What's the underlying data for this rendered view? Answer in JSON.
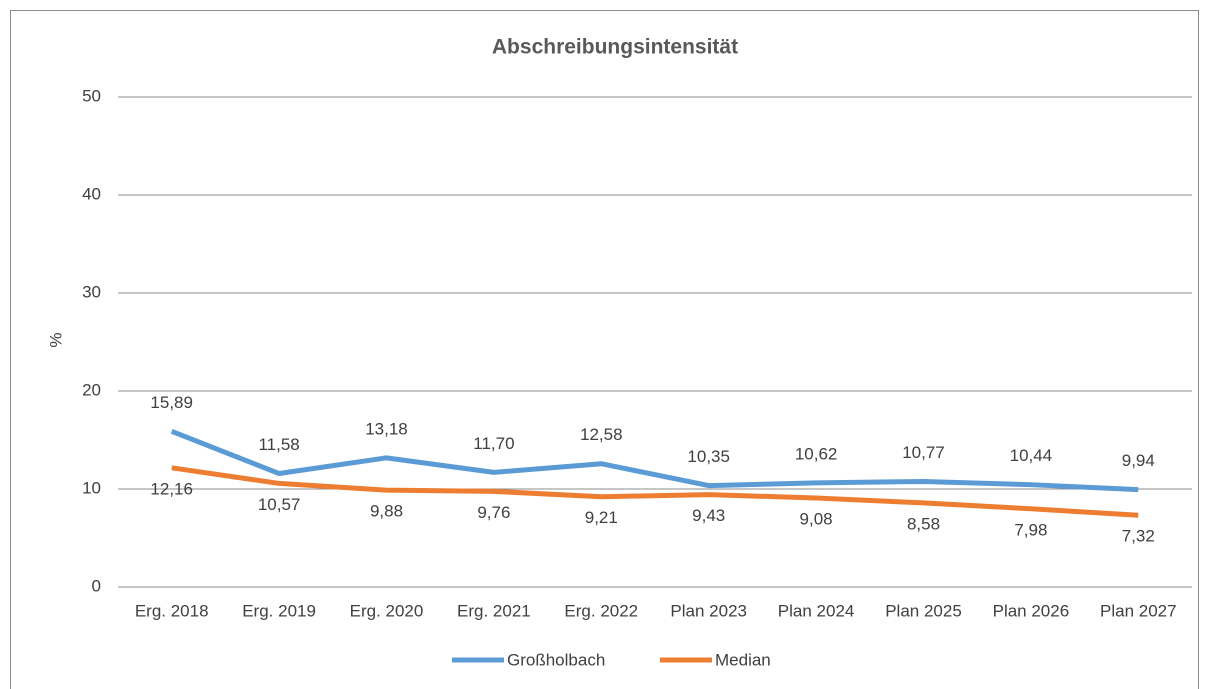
{
  "chart_data": {
    "type": "line",
    "title": "Abschreibungsintensität",
    "y_label": "%",
    "categories": [
      "Erg. 2018",
      "Erg. 2019",
      "Erg. 2020",
      "Erg. 2021",
      "Erg. 2022",
      "Plan 2023",
      "Plan 2024",
      "Plan 2025",
      "Plan 2026",
      "Plan 2027"
    ],
    "series": [
      {
        "name": "Großholbach",
        "color": "#5b9bd5",
        "values": [
          15.89,
          11.58,
          13.18,
          11.7,
          12.58,
          10.35,
          10.62,
          10.77,
          10.44,
          9.94
        ],
        "value_labels": [
          "15,89",
          "11,58",
          "13,18",
          "11,70",
          "12,58",
          "10,35",
          "10,62",
          "10,77",
          "10,44",
          "9,94"
        ]
      },
      {
        "name": "Median",
        "color": "#ed7d31",
        "values": [
          12.16,
          10.57,
          9.88,
          9.76,
          9.21,
          9.43,
          9.08,
          8.58,
          7.98,
          7.32
        ],
        "value_labels": [
          "12,16",
          "10,57",
          "9,88",
          "9,76",
          "9,21",
          "9,43",
          "9,08",
          "8,58",
          "7,98",
          "7,32"
        ]
      }
    ],
    "ylim": [
      0,
      50
    ],
    "yticks": [
      0,
      10,
      20,
      30,
      40,
      50
    ],
    "grid": true,
    "legend": "bottom"
  }
}
